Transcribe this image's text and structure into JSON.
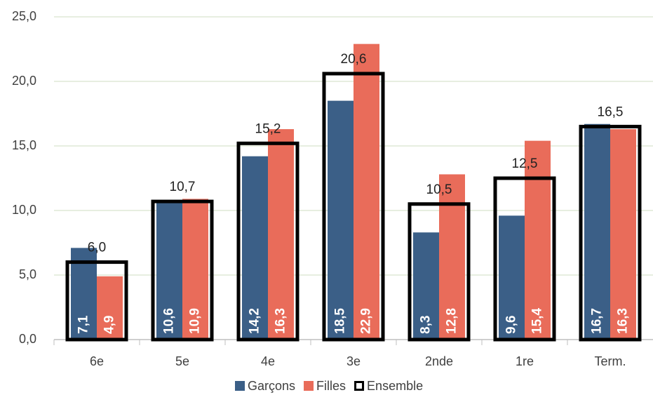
{
  "chart_data": {
    "type": "bar",
    "categories": [
      "6e",
      "5e",
      "4e",
      "3e",
      "2nde",
      "1re",
      "Term."
    ],
    "series": [
      {
        "name": "Garçons",
        "color": "#3b5f87",
        "values": [
          7.1,
          10.6,
          14.2,
          18.5,
          8.3,
          9.6,
          16.7
        ],
        "value_labels": [
          "7,1",
          "10,6",
          "14,2",
          "18,5",
          "8,3",
          "9,6",
          "16,7"
        ]
      },
      {
        "name": "Filles",
        "color": "#e96c5a",
        "values": [
          4.9,
          10.9,
          16.3,
          22.9,
          12.8,
          15.4,
          16.3
        ],
        "value_labels": [
          "4,9",
          "10,9",
          "16,3",
          "22,9",
          "12,8",
          "15,4",
          "16,3"
        ]
      },
      {
        "name": "Ensemble",
        "color": "#000000",
        "values": [
          6.0,
          10.7,
          15.2,
          20.6,
          10.5,
          12.5,
          16.5
        ],
        "value_labels": [
          "6,0",
          "10,7",
          "15,2",
          "20,6",
          "10,5",
          "12,5",
          "16,5"
        ]
      }
    ],
    "ylim": [
      0,
      25
    ],
    "yticks": [
      {
        "value": 0,
        "label": "0,0"
      },
      {
        "value": 5,
        "label": "5,0"
      },
      {
        "value": 10,
        "label": "10,0"
      },
      {
        "value": 15,
        "label": "15,0"
      },
      {
        "value": 20,
        "label": "20,0"
      },
      {
        "value": 25,
        "label": "25,0"
      }
    ],
    "grid": true,
    "legend": "bottom"
  }
}
